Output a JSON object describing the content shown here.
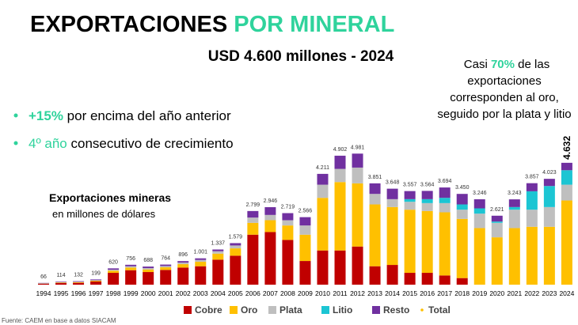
{
  "title": "EXPORTACIONES",
  "title_highlight": "POR MINERAL",
  "subtitle": "USD 4.600 millones - 2024",
  "bullets": [
    {
      "highlight": "+15%",
      "text": " por encima del año anterior"
    },
    {
      "highlight": "4º año",
      "text": " consecutivo de crecimiento"
    }
  ],
  "annotation": {
    "prefix": "Casi ",
    "highlight": "70%",
    "lines": [
      " de las",
      "exportaciones",
      "corresponden al oro,",
      "seguido por la plata y litio"
    ]
  },
  "source": "Fuente: CAEM en base a datos SIACAM",
  "chart_data": {
    "type": "stacked-bar",
    "label": "Exportaciones mineras",
    "sublabel": "en millones de dólares",
    "categories": [
      "1994",
      "1995",
      "1996",
      "1997",
      "1998",
      "1999",
      "2000",
      "2001",
      "2002",
      "2003",
      "2004",
      "2005",
      "2006",
      "2007",
      "2008",
      "2009",
      "2010",
      "2011",
      "2012",
      "2013",
      "2014",
      "2015",
      "2016",
      "2017",
      "2018",
      "2019",
      "2020",
      "2021",
      "2022",
      "2023",
      "2024"
    ],
    "ylim": [
      0,
      5500
    ],
    "series": [
      {
        "name": "Cobre",
        "color": "#c00000",
        "values": [
          30,
          60,
          70,
          120,
          450,
          550,
          480,
          560,
          650,
          700,
          950,
          1100,
          1900,
          2000,
          1700,
          900,
          1300,
          1300,
          1450,
          700,
          750,
          450,
          450,
          350,
          250,
          0,
          0,
          0,
          0,
          0,
          0
        ]
      },
      {
        "name": "Oro",
        "color": "#ffc000",
        "values": [
          10,
          20,
          25,
          30,
          80,
          100,
          100,
          100,
          130,
          170,
          230,
          280,
          450,
          450,
          550,
          1000,
          2000,
          2600,
          2400,
          2350,
          2200,
          2400,
          2350,
          2400,
          2250,
          2150,
          1800,
          2150,
          2200,
          2200,
          3200
        ]
      },
      {
        "name": "Plata",
        "color": "#bfbfbf",
        "values": [
          10,
          14,
          15,
          20,
          40,
          50,
          50,
          50,
          60,
          70,
          90,
          110,
          200,
          200,
          200,
          350,
          500,
          500,
          600,
          400,
          300,
          300,
          300,
          350,
          350,
          550,
          550,
          700,
          650,
          750,
          600
        ]
      },
      {
        "name": "Litio",
        "color": "#1cc5d3",
        "values": [
          0,
          0,
          0,
          0,
          0,
          0,
          0,
          0,
          0,
          0,
          0,
          0,
          0,
          0,
          0,
          0,
          0,
          0,
          0,
          0,
          0,
          100,
          150,
          200,
          200,
          200,
          50,
          100,
          700,
          800,
          550
        ]
      },
      {
        "name": "Resto",
        "color": "#7030a0",
        "values": [
          16,
          20,
          22,
          29,
          50,
          56,
          58,
          54,
          56,
          61,
          67,
          89,
          249,
          296,
          269,
          316,
          411,
          502,
          531,
          401,
          398,
          307,
          314,
          394,
          400,
          346,
          221,
          293,
          307,
          273,
          282
        ]
      }
    ],
    "total": {
      "name": "Total",
      "color": "#ffc000",
      "values": [
        66,
        114,
        132,
        199,
        620,
        756,
        688,
        764,
        896,
        1001,
        1337,
        1579,
        2799,
        2946,
        2719,
        2566,
        4211,
        4902,
        4981,
        3851,
        3648,
        3557,
        3564,
        3694,
        3450,
        3246,
        2621,
        3243,
        3857,
        4023,
        4632
      ],
      "value_labels": [
        "66",
        "114",
        "132",
        "199",
        "620",
        "756",
        "688",
        "764",
        "896",
        "1.001",
        "1.337",
        "1.579",
        "2.799",
        "2.946",
        "2.719",
        "2.566",
        "4.211",
        "4.902",
        "4.981",
        "3.851",
        "3.648",
        "3.557",
        "3.564",
        "3.694",
        "3.450",
        "3.246",
        "2.621",
        "3.243",
        "3.857",
        "4.023",
        "4.632"
      ]
    }
  }
}
